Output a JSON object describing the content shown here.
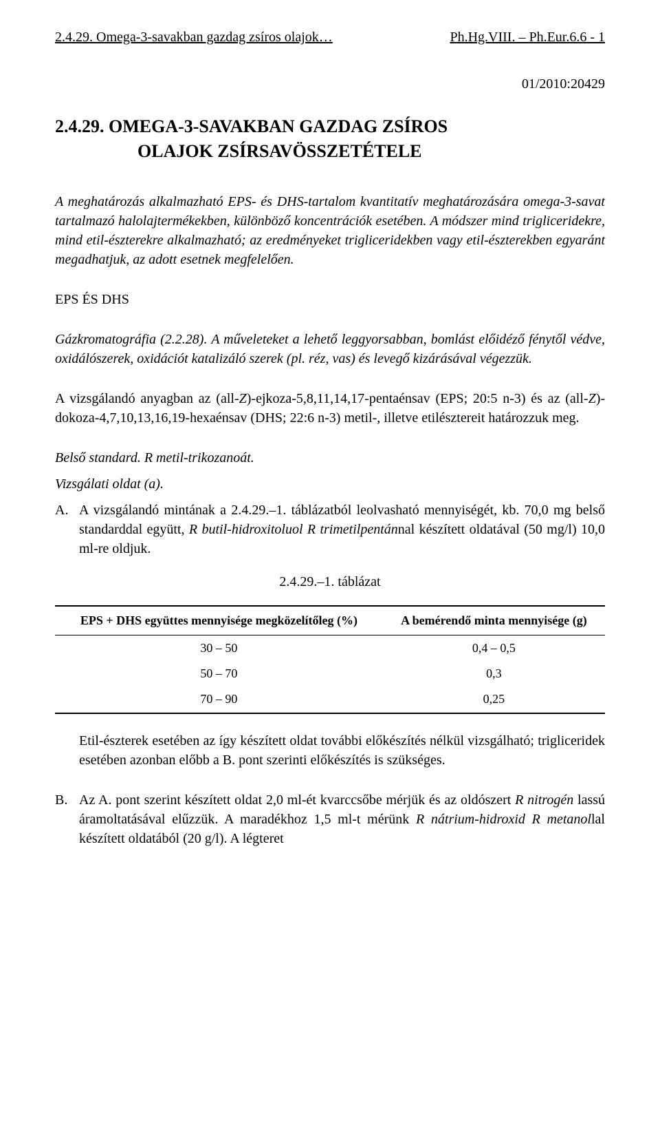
{
  "header": {
    "left": "2.4.29. Omega-3-savakban gazdag zsíros olajok…",
    "right": "Ph.Hg.VIII. – Ph.Eur.6.6 - 1"
  },
  "doc_number": "01/2010:20429",
  "title": {
    "line1": "2.4.29. OMEGA-3-SAVAKBAN GAZDAG ZSÍROS",
    "line2": "OLAJOK ZSÍRSAVÖSSZETÉTELE"
  },
  "intro": "A meghatározás alkalmazható EPS- és DHS-tartalom kvantitatív meghatározására omega-3-savat tartalmazó halolajtermékekben, különböző koncentrációk esetében. A módszer mind trigliceridekre, mind etil-észterekre alkalmazható; az eredményeket trigliceridekben vagy etil-észterekben egyaránt megadhatjuk, az adott esetnek megfelelően.",
  "section1": {
    "heading": "EPS ÉS DHS",
    "para1_prefix": "Gázkromatográfia (2.2.28). ",
    "para1_body": "A műveleteket a lehető leggyorsabban, bomlást előidéző fénytől védve, oxidálószerek, oxidációt katalizáló szerek (pl. réz, vas) és levegő kizárásával végezzük.",
    "para2_part1": "A vizsgálandó anyagban az (all-",
    "para2_Z1": "Z",
    "para2_part2": ")-ejkoza-5,8,11,14,17-pentaénsav (EPS; 20:5 n-3) és az (all-",
    "para2_Z2": "Z",
    "para2_part3": ")-dokoza-4,7,10,13,16,19-hexaénsav (DHS; 22:6 n-3) metil-, illetve etilésztereit határozzuk meg.",
    "internal_std": "Belső standard. R metil-trikozanoát.",
    "vizsgalati": "Vizsgálati oldat (a).",
    "item_a": {
      "marker": "A.",
      "part1": "A vizsgálandó mintának a 2.4.29.–1. táblázatból leolvasható mennyiségét, kb. 70,0 mg belső standarddal együtt, ",
      "part2_italic": "R butil-hidroxitoluol R trimetilpentán",
      "part3": "nal készített oldatával (50 mg/l) 10,0 ml-re oldjuk."
    },
    "table": {
      "caption": "2.4.29.–1. táblázat",
      "col1": "EPS + DHS együttes mennyisége megközelítőleg (%)",
      "col2": "A bemérendő minta mennyisége (g)",
      "rows": [
        {
          "c1": "30 – 50",
          "c2": "0,4 – 0,5"
        },
        {
          "c1": "50 – 70",
          "c2": "0,3"
        },
        {
          "c1": "70 – 90",
          "c2": "0,25"
        }
      ]
    },
    "after_table": "Etil-észterek esetében az így készített oldat további előkészítés nélkül vizsgálható; trigliceridek esetében azonban előbb a B. pont szerinti előkészítés is szükséges.",
    "item_b": {
      "marker": "B.",
      "part1": "Az A. pont szerint készített oldat 2,0 ml-ét kvarccsőbe mérjük és az oldószert ",
      "part2_italic": "R nitrogén",
      "part3": " lassú áramoltatásával elűzzük. A maradékhoz 1,5 ml-t mérünk ",
      "part4_italic": "R nátrium-hidroxid R metanol",
      "part5": "lal készített oldatából (20 g/l). A légteret"
    }
  }
}
